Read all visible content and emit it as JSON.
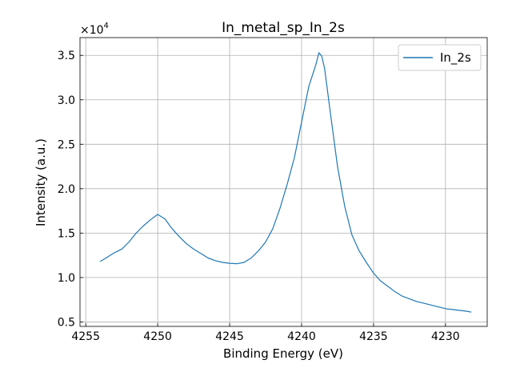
{
  "chart_data": {
    "type": "line",
    "title": "In_metal_sp_In_2s",
    "xlabel": "Binding Energy (eV)",
    "ylabel": "Intensity (a.u.)",
    "y_scale_label": "×10",
    "y_scale_exponent": "4",
    "xlim": [
      4255.4,
      4227.1
    ],
    "ylim": [
      4500,
      37000
    ],
    "x_reversed": true,
    "grid": true,
    "legend_position": "top-right",
    "x_ticks": [
      {
        "value": 4255,
        "label": "4255"
      },
      {
        "value": 4250,
        "label": "4250"
      },
      {
        "value": 4245,
        "label": "4245"
      },
      {
        "value": 4240,
        "label": "4240"
      },
      {
        "value": 4235,
        "label": "4235"
      },
      {
        "value": 4230,
        "label": "4230"
      }
    ],
    "y_ticks": [
      {
        "value": 5000,
        "label": "0.5"
      },
      {
        "value": 10000,
        "label": "1.0"
      },
      {
        "value": 15000,
        "label": "1.5"
      },
      {
        "value": 20000,
        "label": "2.0"
      },
      {
        "value": 25000,
        "label": "2.5"
      },
      {
        "value": 30000,
        "label": "3.0"
      },
      {
        "value": 35000,
        "label": "3.5"
      }
    ],
    "series": [
      {
        "name": "In_2s",
        "color": "#1f77b4",
        "x": [
          4254.0,
          4253.5,
          4253.0,
          4252.5,
          4252.0,
          4251.5,
          4251.0,
          4250.5,
          4250.0,
          4249.5,
          4249.0,
          4248.5,
          4248.0,
          4247.5,
          4247.0,
          4246.5,
          4246.0,
          4245.5,
          4245.0,
          4244.5,
          4244.0,
          4243.5,
          4243.0,
          4242.5,
          4242.0,
          4241.5,
          4241.0,
          4240.5,
          4240.0,
          4239.5,
          4239.0,
          4238.8,
          4238.6,
          4238.4,
          4238.2,
          4238.0,
          4237.5,
          4237.0,
          4236.5,
          4236.0,
          4235.5,
          4235.0,
          4234.5,
          4234.0,
          4233.5,
          4233.0,
          4232.5,
          4232.0,
          4231.5,
          4231.0,
          4230.5,
          4230.0,
          4229.5,
          4229.0,
          4228.5,
          4228.2
        ],
        "y": [
          11800,
          12300,
          12800,
          13200,
          14000,
          15000,
          15800,
          16500,
          17100,
          16600,
          15500,
          14600,
          13800,
          13200,
          12700,
          12200,
          11900,
          11700,
          11600,
          11550,
          11700,
          12200,
          13000,
          14000,
          15500,
          17800,
          20500,
          23500,
          27500,
          31500,
          34000,
          35300,
          34900,
          33500,
          31000,
          28500,
          22500,
          18000,
          14800,
          13000,
          11700,
          10500,
          9600,
          9000,
          8400,
          7900,
          7600,
          7300,
          7100,
          6900,
          6700,
          6500,
          6400,
          6300,
          6200,
          6100
        ]
      }
    ]
  }
}
